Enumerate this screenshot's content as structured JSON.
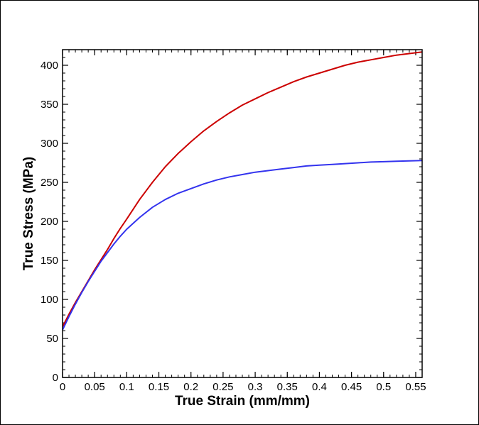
{
  "chart_data": {
    "type": "line",
    "title": "",
    "xlabel": "True Strain (mm/mm)",
    "ylabel": "True Stress (MPa)",
    "xlim": [
      0,
      0.56
    ],
    "ylim": [
      0,
      420
    ],
    "xticks": [
      {
        "value": 0,
        "label": "0"
      },
      {
        "value": 0.05,
        "label": "0.05"
      },
      {
        "value": 0.1,
        "label": "0.1"
      },
      {
        "value": 0.15,
        "label": "0.15"
      },
      {
        "value": 0.2,
        "label": "0.2"
      },
      {
        "value": 0.25,
        "label": "0.25"
      },
      {
        "value": 0.3,
        "label": "0.3"
      },
      {
        "value": 0.35,
        "label": "0.35"
      },
      {
        "value": 0.4,
        "label": "0.4"
      },
      {
        "value": 0.45,
        "label": "0.45"
      },
      {
        "value": 0.5,
        "label": "0.5"
      },
      {
        "value": 0.55,
        "label": "0.55"
      }
    ],
    "yticks": [
      {
        "value": 0,
        "label": "0"
      },
      {
        "value": 50,
        "label": "50"
      },
      {
        "value": 100,
        "label": "100"
      },
      {
        "value": 150,
        "label": "150"
      },
      {
        "value": 200,
        "label": "200"
      },
      {
        "value": 250,
        "label": "250"
      },
      {
        "value": 300,
        "label": "300"
      },
      {
        "value": 350,
        "label": "350"
      },
      {
        "value": 400,
        "label": "400"
      }
    ],
    "x_minor_step": 0.01,
    "y_minor_step": 10,
    "grid": false,
    "legend": "none",
    "series": [
      {
        "color": "#cc0000",
        "points": [
          [
            0,
            65
          ],
          [
            0.01,
            81
          ],
          [
            0.02,
            96
          ],
          [
            0.03,
            110
          ],
          [
            0.04,
            124
          ],
          [
            0.05,
            138
          ],
          [
            0.06,
            151
          ],
          [
            0.07,
            164
          ],
          [
            0.08,
            178
          ],
          [
            0.09,
            191
          ],
          [
            0.1,
            203
          ],
          [
            0.12,
            228
          ],
          [
            0.14,
            250
          ],
          [
            0.16,
            270
          ],
          [
            0.18,
            287
          ],
          [
            0.2,
            302
          ],
          [
            0.22,
            316
          ],
          [
            0.24,
            328
          ],
          [
            0.26,
            339
          ],
          [
            0.28,
            349
          ],
          [
            0.3,
            357
          ],
          [
            0.32,
            365
          ],
          [
            0.34,
            372
          ],
          [
            0.36,
            379
          ],
          [
            0.38,
            385
          ],
          [
            0.4,
            390
          ],
          [
            0.42,
            395
          ],
          [
            0.44,
            400
          ],
          [
            0.46,
            404
          ],
          [
            0.48,
            407
          ],
          [
            0.5,
            410
          ],
          [
            0.52,
            413
          ],
          [
            0.54,
            415
          ],
          [
            0.56,
            417
          ]
        ]
      },
      {
        "color": "#3333ee",
        "points": [
          [
            0,
            61
          ],
          [
            0.01,
            78
          ],
          [
            0.02,
            94
          ],
          [
            0.03,
            109
          ],
          [
            0.04,
            123
          ],
          [
            0.05,
            136
          ],
          [
            0.06,
            149
          ],
          [
            0.07,
            160
          ],
          [
            0.08,
            171
          ],
          [
            0.09,
            181
          ],
          [
            0.1,
            190
          ],
          [
            0.12,
            205
          ],
          [
            0.14,
            218
          ],
          [
            0.16,
            228
          ],
          [
            0.18,
            236
          ],
          [
            0.2,
            242
          ],
          [
            0.22,
            248
          ],
          [
            0.24,
            253
          ],
          [
            0.26,
            257
          ],
          [
            0.28,
            260
          ],
          [
            0.3,
            263
          ],
          [
            0.32,
            265
          ],
          [
            0.34,
            267
          ],
          [
            0.36,
            269
          ],
          [
            0.38,
            271
          ],
          [
            0.4,
            272
          ],
          [
            0.42,
            273
          ],
          [
            0.44,
            274
          ],
          [
            0.46,
            275
          ],
          [
            0.48,
            276
          ],
          [
            0.5,
            276.5
          ],
          [
            0.52,
            277
          ],
          [
            0.54,
            277.5
          ],
          [
            0.56,
            278
          ]
        ]
      }
    ]
  }
}
